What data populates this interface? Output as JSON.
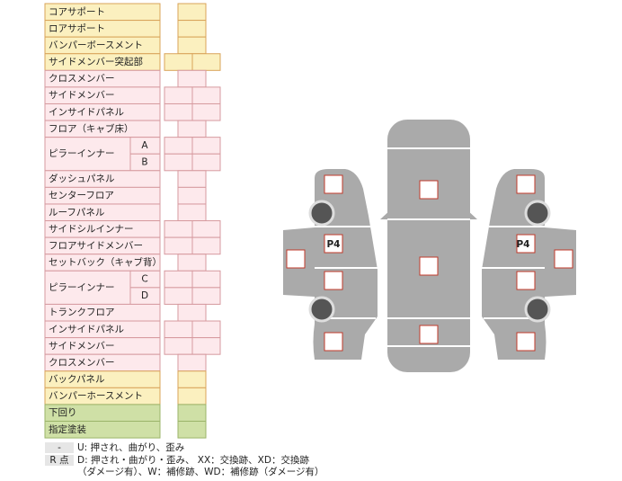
{
  "table": {
    "rows": [
      {
        "label": "コアサポート"
      },
      {
        "label": "ロアサポート"
      },
      {
        "label": "バンパーボースメント"
      },
      {
        "label": "サイドメンバー突起部"
      },
      {
        "label": "クロスメンバー"
      },
      {
        "label": "サイドメンバー"
      },
      {
        "label": "インサイドパネル"
      },
      {
        "label": "フロア（キャブ床）"
      },
      {
        "label": "ピラーインナー",
        "sub": [
          "A",
          "B"
        ]
      },
      {
        "label": "ダッシュパネル"
      },
      {
        "label": "センターフロア"
      },
      {
        "label": "ルーフパネル"
      },
      {
        "label": "サイドシルインナー"
      },
      {
        "label": "フロアサイドメンバー"
      },
      {
        "label": "セットバック（キャブ背）"
      },
      {
        "label": "ピラーインナー",
        "sub": [
          "C",
          "D"
        ]
      },
      {
        "label": "トランクフロア"
      },
      {
        "label": "インサイドパネル"
      },
      {
        "label": "サイドメンバー"
      },
      {
        "label": "クロスメンバー"
      },
      {
        "label": "バックパネル"
      },
      {
        "label": "バンパーホースメント"
      },
      {
        "label": "下回り"
      },
      {
        "label": "指定塗装"
      }
    ]
  },
  "diagram": {
    "labels": [
      "P4",
      "P4"
    ]
  },
  "legend": {
    "items": [
      {
        "key": "-",
        "text": [
          "U: 押され、曲がり、歪み"
        ]
      },
      {
        "key": "R 点",
        "text": [
          "D: 押され・曲がり・歪み、 XX：交換跡、XD：交換跡",
          "（ダメージ有）、W：補修跡、WD：補修跡（ダメージ有）"
        ]
      }
    ]
  }
}
